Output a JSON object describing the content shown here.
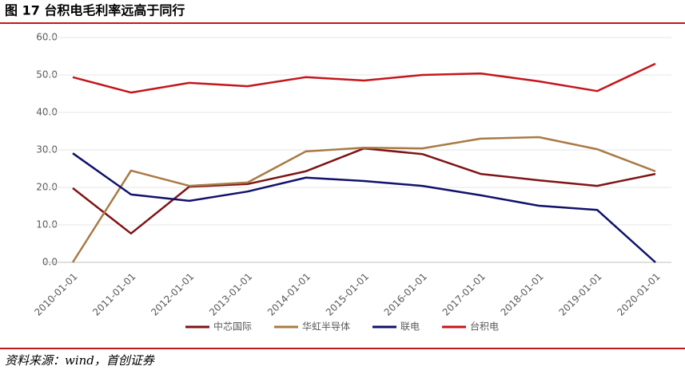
{
  "chart_data": {
    "type": "line",
    "title": "图 17 台积电毛利率远高于同行",
    "source": "资料来源：wind，首创证券",
    "categories": [
      "2010-01-01",
      "2011-01-01",
      "2012-01-01",
      "2013-01-01",
      "2014-01-01",
      "2015-01-01",
      "2016-01-01",
      "2017-01-01",
      "2018-01-01",
      "2019-01-01",
      "2020-01-01"
    ],
    "series": [
      {
        "name": "中芯国际",
        "color": "#7f1416",
        "values": [
          19.8,
          7.7,
          20.2,
          20.9,
          24.3,
          30.4,
          28.9,
          23.6,
          21.9,
          20.4,
          23.6
        ]
      },
      {
        "name": "华虹半导体",
        "color": "#a97a45",
        "values": [
          0,
          24.5,
          20.4,
          21.3,
          29.6,
          30.6,
          30.4,
          33.0,
          33.4,
          30.2,
          24.3
        ]
      },
      {
        "name": "联电",
        "color": "#10116b",
        "values": [
          29.1,
          18.1,
          16.4,
          18.9,
          22.6,
          21.7,
          20.4,
          17.9,
          15.1,
          14.0,
          0
        ]
      },
      {
        "name": "台积电",
        "color": "#c4161c",
        "values": [
          49.4,
          45.3,
          47.9,
          47.0,
          49.4,
          48.5,
          50.0,
          50.4,
          48.3,
          45.7,
          53.0
        ]
      }
    ],
    "ylim": [
      0,
      60
    ],
    "yticks": [
      {
        "value": 0,
        "label": "0.0"
      },
      {
        "value": 10,
        "label": "10.0"
      },
      {
        "value": 20,
        "label": "20.0"
      },
      {
        "value": 30,
        "label": "30.0"
      },
      {
        "value": 40,
        "label": "40.0"
      },
      {
        "value": 50,
        "label": "50.0"
      },
      {
        "value": 60,
        "label": "60.0"
      }
    ],
    "grid": true,
    "legend": "bottom"
  }
}
